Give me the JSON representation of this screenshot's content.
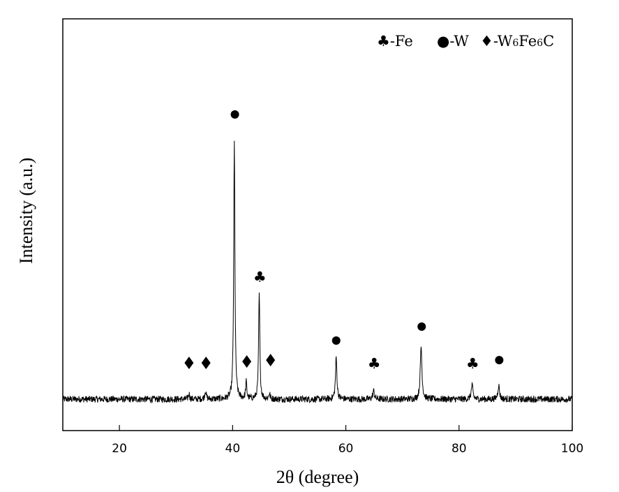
{
  "chart_data": {
    "type": "line",
    "title": "",
    "xlabel": "2θ (degree)",
    "ylabel": "Intensity (a.u.)",
    "xlim": [
      10,
      100
    ],
    "ylim": [
      -0.08,
      1.0
    ],
    "xticks": [
      20,
      40,
      60,
      80,
      100
    ],
    "yticks_shown": false,
    "grid": false,
    "legend_position": "top-right",
    "legend": [
      {
        "symbol": "club",
        "glyph": "♣",
        "label": "-Fe"
      },
      {
        "symbol": "circle",
        "glyph": "●",
        "label": "-W"
      },
      {
        "symbol": "diamond",
        "glyph": "♦",
        "label_main": "-W",
        "label_sub1": "6",
        "label_mid": "Fe",
        "label_sub2": "6",
        "label_end": "C"
      }
    ],
    "series": [
      {
        "baseline": 0.0,
        "noise_amplitude": 0.012,
        "peaks": [
          {
            "x": 32.3,
            "height": 0.02,
            "width": 0.25
          },
          {
            "x": 35.2,
            "height": 0.03,
            "width": 0.3
          },
          {
            "x": 40.3,
            "height": 0.92,
            "width": 0.25
          },
          {
            "x": 42.4,
            "height": 0.06,
            "width": 0.25
          },
          {
            "x": 44.7,
            "height": 0.38,
            "width": 0.25
          },
          {
            "x": 46.5,
            "height": 0.02,
            "width": 0.25
          },
          {
            "x": 58.3,
            "height": 0.15,
            "width": 0.3
          },
          {
            "x": 64.9,
            "height": 0.03,
            "width": 0.35
          },
          {
            "x": 73.3,
            "height": 0.19,
            "width": 0.35
          },
          {
            "x": 82.3,
            "height": 0.05,
            "width": 0.35
          },
          {
            "x": 87.0,
            "height": 0.05,
            "width": 0.35
          }
        ]
      }
    ],
    "peak_markers": [
      {
        "x": 32.3,
        "y": 0.13,
        "symbol": "diamond"
      },
      {
        "x": 35.3,
        "y": 0.13,
        "symbol": "diamond"
      },
      {
        "x": 40.4,
        "y": 1.02,
        "symbol": "circle"
      },
      {
        "x": 42.5,
        "y": 0.135,
        "symbol": "diamond"
      },
      {
        "x": 46.7,
        "y": 0.14,
        "symbol": "diamond"
      },
      {
        "x": 44.8,
        "y": 0.44,
        "symbol": "club"
      },
      {
        "x": 58.3,
        "y": 0.21,
        "symbol": "circle"
      },
      {
        "x": 65.0,
        "y": 0.13,
        "symbol": "club"
      },
      {
        "x": 73.4,
        "y": 0.26,
        "symbol": "circle"
      },
      {
        "x": 82.4,
        "y": 0.13,
        "symbol": "club"
      },
      {
        "x": 87.1,
        "y": 0.14,
        "symbol": "circle"
      }
    ]
  }
}
